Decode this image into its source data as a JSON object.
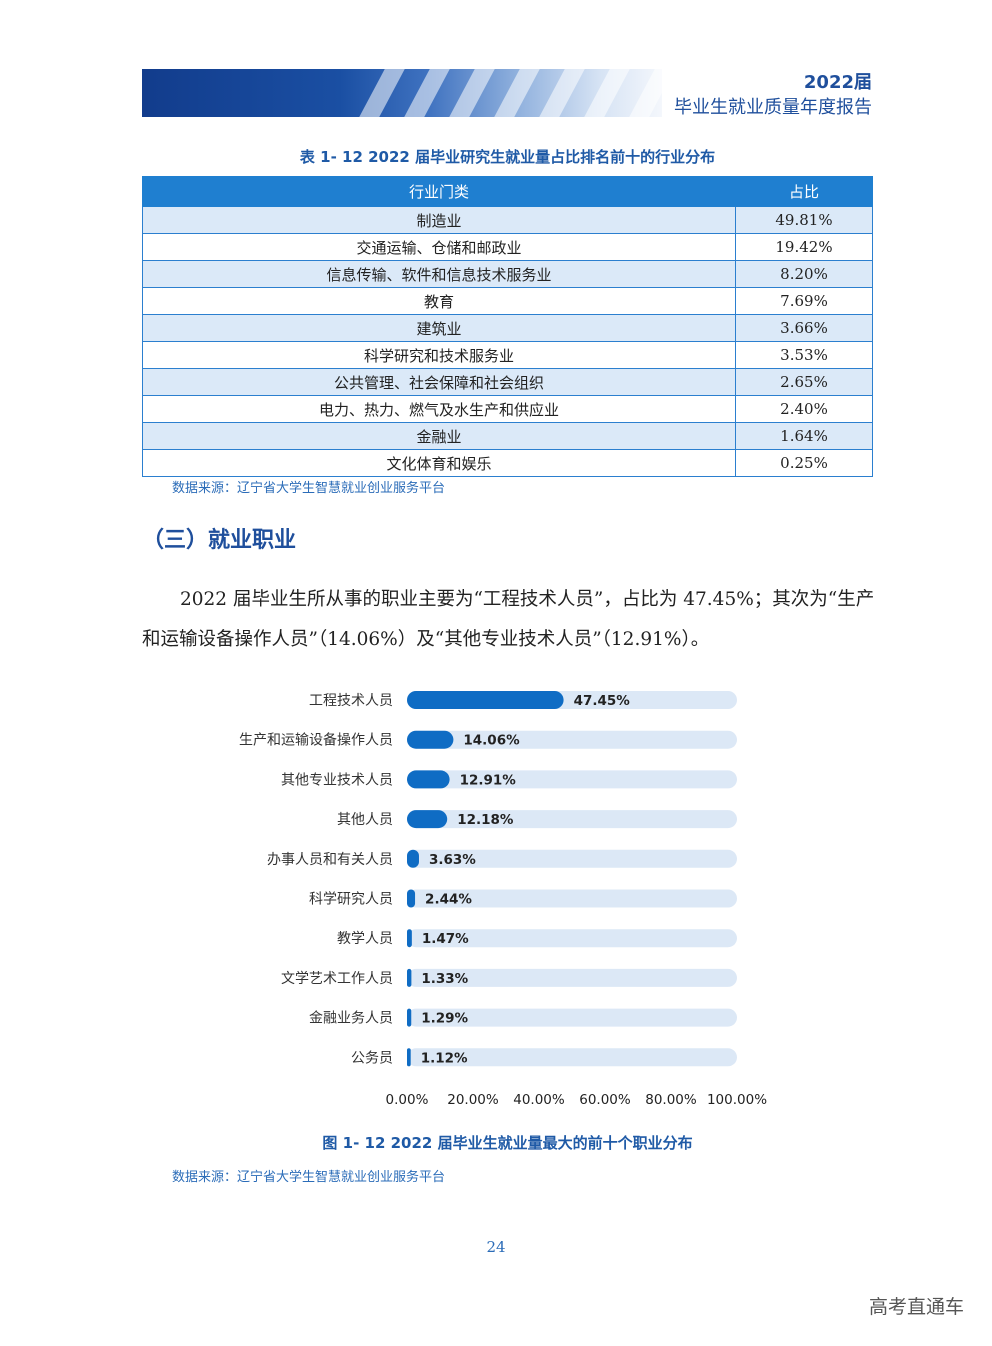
{
  "header": {
    "year": "2022届",
    "title": "毕业生就业质量年度报告"
  },
  "table": {
    "caption": "表 1- 12    2022 届毕业研究生就业量占比排名前十的行业分布",
    "headers": [
      "行业门类",
      "占比"
    ],
    "rows": [
      [
        "制造业",
        "49.81%"
      ],
      [
        "交通运输、仓储和邮政业",
        "19.42%"
      ],
      [
        "信息传输、软件和信息技术服务业",
        "8.20%"
      ],
      [
        "教育",
        "7.69%"
      ],
      [
        "建筑业",
        "3.66%"
      ],
      [
        "科学研究和技术服务业",
        "3.53%"
      ],
      [
        "公共管理、社会保障和社会组织",
        "2.65%"
      ],
      [
        "电力、热力、燃气及水生产和供应业",
        "2.40%"
      ],
      [
        "金融业",
        "1.64%"
      ],
      [
        "文化体育和娱乐",
        "0.25%"
      ]
    ]
  },
  "source_text": "数据来源：辽宁省大学生智慧就业创业服务平台",
  "section_title": "（三）就业职业",
  "paragraph": "2022 届毕业生所从事的职业主要为“工程技术人员”，占比为 47.45%；其次为“生产和运输设备操作人员”（14.06%）及“其他专业技术人员”（12.91%）。",
  "chart_data": {
    "type": "bar",
    "orientation": "horizontal",
    "categories": [
      "工程技术人员",
      "生产和运输设备操作人员",
      "其他专业技术人员",
      "其他人员",
      "办事人员和有关人员",
      "科学研究人员",
      "教学人员",
      "文学艺术工作人员",
      "金融业务人员",
      "公务员"
    ],
    "values": [
      47.45,
      14.06,
      12.91,
      12.18,
      3.63,
      2.44,
      1.47,
      1.33,
      1.29,
      1.12
    ],
    "value_labels": [
      "47.45%",
      "14.06%",
      "12.91%",
      "12.18%",
      "3.63%",
      "2.44%",
      "1.47%",
      "1.33%",
      "1.29%",
      "1.12%"
    ],
    "xlim": [
      0,
      100
    ],
    "x_ticks": [
      "0.00%",
      "20.00%",
      "40.00%",
      "60.00%",
      "80.00%",
      "100.00%"
    ],
    "colors": {
      "bar": "#0f6cc4",
      "track": "#dce8f6"
    }
  },
  "figure_caption": "图 1- 12    2022 届毕业生就业量最大的前十个职业分布",
  "page_number": "24",
  "watermark": "高考直通车"
}
